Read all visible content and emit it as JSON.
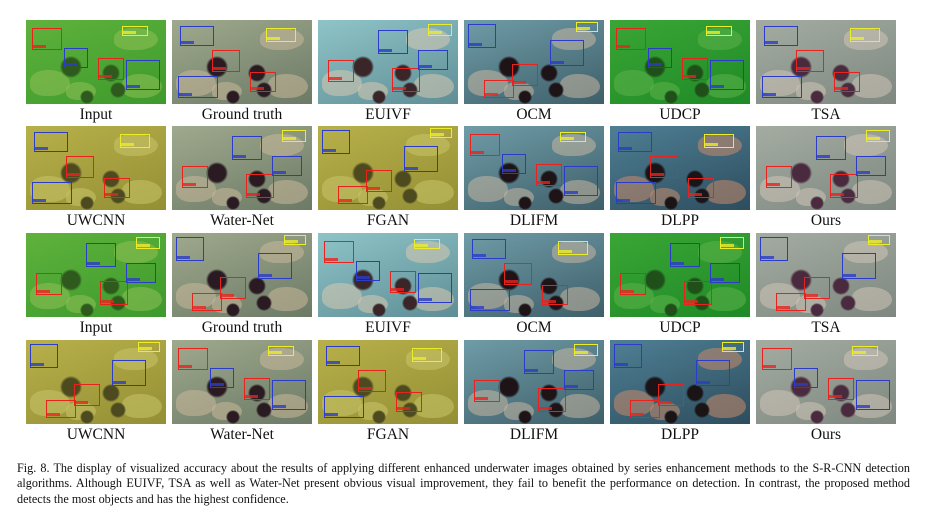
{
  "figure": {
    "rows": [
      {
        "panels": [
          {
            "label": "Input",
            "tone": "green"
          },
          {
            "label": "Ground truth",
            "tone": "natural"
          },
          {
            "label": "EUIVF",
            "tone": "bright"
          },
          {
            "label": "OCM",
            "tone": "contrast"
          },
          {
            "label": "UDCP",
            "tone": "deepgreen"
          },
          {
            "label": "TSA",
            "tone": "gray"
          }
        ]
      },
      {
        "panels": [
          {
            "label": "UWCNN",
            "tone": "yellow"
          },
          {
            "label": "Water-Net",
            "tone": "natural"
          },
          {
            "label": "FGAN",
            "tone": "yellow"
          },
          {
            "label": "DLIFM",
            "tone": "contrast"
          },
          {
            "label": "DLPP",
            "tone": "vivid"
          },
          {
            "label": "Ours",
            "tone": "gray"
          }
        ]
      },
      {
        "panels": [
          {
            "label": "Input",
            "tone": "green"
          },
          {
            "label": "Ground truth",
            "tone": "natural"
          },
          {
            "label": "EUIVF",
            "tone": "bright"
          },
          {
            "label": "OCM",
            "tone": "contrast"
          },
          {
            "label": "UDCP",
            "tone": "deepgreen"
          },
          {
            "label": "TSA",
            "tone": "gray"
          }
        ]
      },
      {
        "panels": [
          {
            "label": "UWCNN",
            "tone": "yellow"
          },
          {
            "label": "Water-Net",
            "tone": "natural"
          },
          {
            "label": "FGAN",
            "tone": "yellow"
          },
          {
            "label": "DLIFM",
            "tone": "contrast"
          },
          {
            "label": "DLPP",
            "tone": "vivid"
          },
          {
            "label": "Ours",
            "tone": "gray"
          }
        ]
      }
    ],
    "tones": {
      "green": {
        "bg": [
          "#5fb23c",
          "#3d9a2c"
        ],
        "rock": "#8fbf55",
        "urchin": "#2f5a1e"
      },
      "natural": {
        "bg": [
          "#9fa98d",
          "#6c7a66"
        ],
        "rock": "#c9b89a",
        "urchin": "#2a1a22"
      },
      "bright": {
        "bg": [
          "#8ec4c8",
          "#5f8e96"
        ],
        "rock": "#d8c9b0",
        "urchin": "#3a2628"
      },
      "contrast": {
        "bg": [
          "#6f9ca7",
          "#3e5f6a"
        ],
        "rock": "#c7b6a0",
        "urchin": "#1e1418"
      },
      "deepgreen": {
        "bg": [
          "#3aa636",
          "#1f8a26"
        ],
        "rock": "#5db24a",
        "urchin": "#20501a"
      },
      "gray": {
        "bg": [
          "#a4aca2",
          "#7e8880"
        ],
        "rock": "#cfc4b8",
        "urchin": "#4a2a3e"
      },
      "yellow": {
        "bg": [
          "#b7b04a",
          "#948f35"
        ],
        "rock": "#c9c46a",
        "urchin": "#4d4a20"
      },
      "vivid": {
        "bg": [
          "#4f7f94",
          "#2d4d5e"
        ],
        "rock": "#c98a6a",
        "urchin": "#1a1416"
      }
    },
    "box_colors": {
      "red": "#e8231e",
      "blue": "#2a3cc8",
      "yellow": "#ecec2a"
    }
  },
  "caption": "Fig. 8.   The display of visualized accuracy about the results of applying different enhanced underwater images obtained by series enhancement methods to the S-R-CNN detection algorithms. Although EUIVF, TSA as well as Water-Net present obvious visual improvement, they fail to benefit the performance on detection. In contrast, the proposed method detects the most objects and has the highest confidence."
}
